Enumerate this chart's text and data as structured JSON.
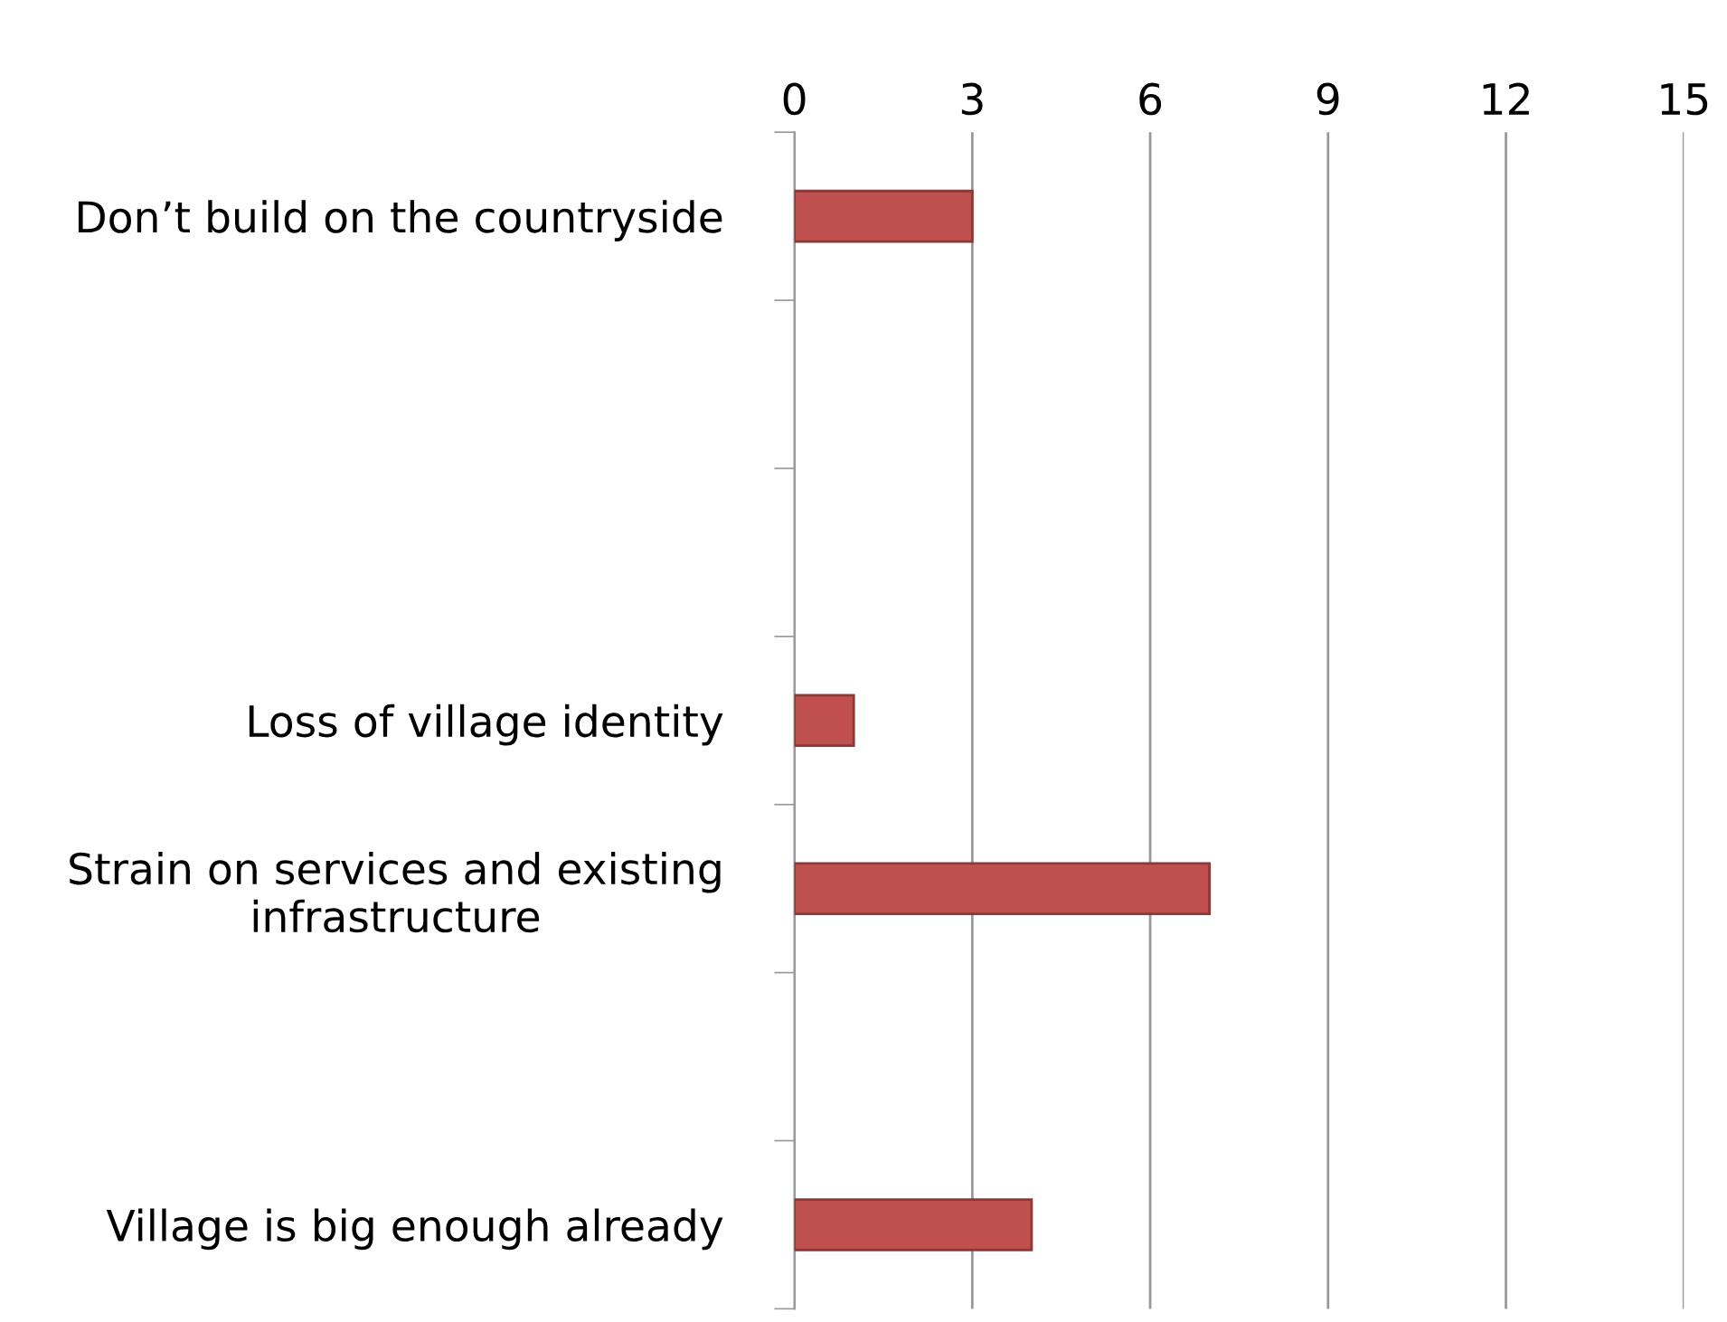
{
  "chart_data": {
    "type": "bar",
    "orientation": "horizontal",
    "categories": [
      "Don’t build on the countryside",
      null,
      null,
      "Loss of village identity",
      "Strain on services and existing infrastructure",
      null,
      "Village is big enough already"
    ],
    "values": [
      3,
      null,
      null,
      1,
      7,
      null,
      4
    ],
    "color": "#c0504d",
    "xlim": [
      0,
      15
    ],
    "xticks": [
      0,
      3,
      6,
      9,
      12,
      15
    ],
    "grid": "x"
  }
}
